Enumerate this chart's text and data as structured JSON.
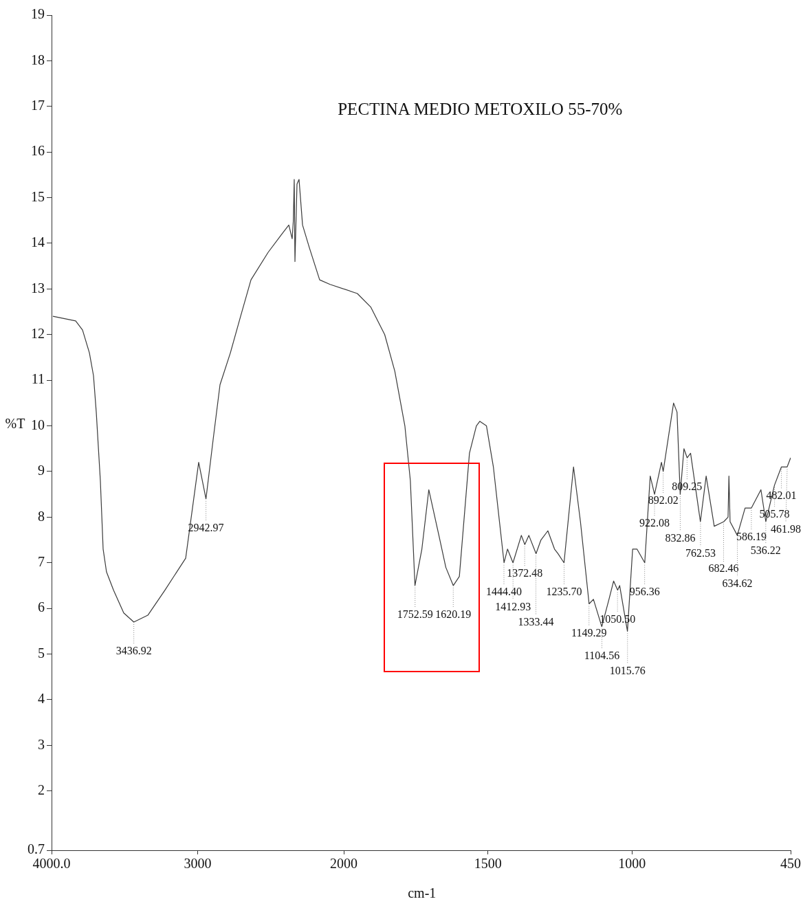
{
  "chart_data": [
    {
      "type": "line",
      "ylabel": "%T",
      "xlim": [
        4000,
        2000
      ],
      "xticks": [
        {
          "value": 4000,
          "label": "4000.0"
        },
        3000
      ],
      "ylim": [
        0.7,
        19
      ],
      "yticks": [
        0.7,
        2,
        3,
        4,
        5,
        6,
        7,
        8,
        9,
        10,
        11,
        12,
        13,
        14,
        15,
        16,
        17,
        18,
        19
      ],
      "grid": false,
      "legend": false,
      "marker": "none",
      "line_style": "solid",
      "series": [
        {
          "color": "#3a3a3a",
          "x": [
            3991,
            3835,
            3788,
            3741,
            3713,
            3694,
            3666,
            3647,
            3624,
            3576,
            3506,
            3437,
            3341,
            3224,
            3082,
            2993,
            2943,
            2894,
            2847,
            2776,
            2706,
            2635,
            2518,
            2424,
            2376,
            2353,
            2345,
            2339,
            2334,
            2320,
            2306,
            2282,
            2235,
            2165,
            2094,
            2000
          ],
          "values": [
            12.4,
            12.3,
            12.1,
            11.6,
            11.1,
            10.3,
            8.8,
            7.3,
            6.8,
            6.4,
            5.9,
            5.7,
            5.85,
            6.4,
            7.1,
            9.2,
            8.4,
            9.7,
            10.9,
            11.6,
            12.4,
            13.2,
            13.8,
            14.2,
            14.4,
            14.1,
            14.5,
            15.4,
            13.6,
            15.3,
            15.4,
            14.4,
            13.9,
            13.2,
            13.1,
            13
          ]
        }
      ],
      "annotations": [
        {
          "text": "3436.92",
          "x": 3436.92,
          "y": 5.7
        },
        {
          "text": "2942.97",
          "x": 2942.97,
          "y": 8.4
        }
      ]
    },
    {
      "type": "line",
      "title": "PECTINA MEDIO METOXILO 55-70%",
      "xlabel": "cm-1",
      "xlim": [
        2000,
        450
      ],
      "xticks": [
        2000,
        1500,
        1000,
        450
      ],
      "ylim": [
        0.7,
        19
      ],
      "yticks": [
        0.7,
        2,
        3,
        4,
        5,
        6,
        7,
        8,
        9,
        10,
        11,
        12,
        13,
        14,
        15,
        16,
        17,
        18,
        19
      ],
      "tick_labels": "x",
      "grid": false,
      "legend": false,
      "marker": "none",
      "line_style": "solid",
      "series": [
        {
          "color": "#3a3a3a",
          "x": [
            2000,
            1953,
            1906,
            1858,
            1823,
            1788,
            1769,
            1753,
            1729,
            1705,
            1670,
            1646,
            1620,
            1599,
            1564,
            1540,
            1528,
            1505,
            1481,
            1444,
            1432,
            1413,
            1384,
            1372,
            1358,
            1333,
            1316,
            1292,
            1269,
            1257,
            1236,
            1203,
            1179,
            1149,
            1134,
            1105,
            1080,
            1064,
            1050,
            1043,
            1016,
            998,
            983,
            956,
            937,
            922,
            898,
            892,
            856,
            844,
            833,
            820,
            809,
            797,
            763,
            743,
            715,
            682,
            667,
            664,
            660,
            635,
            608,
            586,
            553,
            536,
            506,
            482,
            462,
            450
          ],
          "values": [
            13,
            12.9,
            12.6,
            12,
            11.2,
            10,
            8.8,
            6.5,
            7.3,
            8.6,
            7.6,
            6.9,
            6.5,
            6.7,
            9.4,
            10,
            10.1,
            10,
            9.1,
            7,
            7.3,
            7,
            7.6,
            7.4,
            7.6,
            7.2,
            7.5,
            7.7,
            7.3,
            7.2,
            7,
            9.1,
            7.9,
            6.1,
            6.2,
            5.6,
            6.2,
            6.6,
            6.4,
            6.5,
            5.5,
            7.3,
            7.3,
            7,
            8.9,
            8.5,
            9.2,
            9,
            10.5,
            10.3,
            8.5,
            9.5,
            9.3,
            9.4,
            7.9,
            8.9,
            7.8,
            7.9,
            8,
            8.9,
            7.9,
            7.6,
            8.2,
            8.2,
            8.6,
            7.9,
            8.7,
            9.1,
            9.1,
            9.3
          ]
        }
      ],
      "annotations": [
        {
          "text": "1752.59",
          "x": 1752.59,
          "y": 6.5
        },
        {
          "text": "1620.19",
          "x": 1620.19,
          "y": 6.5
        },
        {
          "text": "1444.40",
          "x": 1444.4,
          "y": 7
        },
        {
          "text": "1412.93",
          "x": 1412.93,
          "y": 7
        },
        {
          "text": "1372.48",
          "x": 1372.48,
          "y": 7.4
        },
        {
          "text": "1333.44",
          "x": 1333.44,
          "y": 7.2
        },
        {
          "text": "1235.70",
          "x": 1235.7,
          "y": 7
        },
        {
          "text": "1149.29",
          "x": 1149.29,
          "y": 6.1
        },
        {
          "text": "1104.56",
          "x": 1104.56,
          "y": 5.6
        },
        {
          "text": "1050.50",
          "x": 1050.5,
          "y": 6.4
        },
        {
          "text": "1015.76",
          "x": 1015.76,
          "y": 5.5
        },
        {
          "text": "956.36",
          "x": 956.36,
          "y": 7
        },
        {
          "text": "922.08",
          "x": 922.08,
          "y": 8.5
        },
        {
          "text": "892.02",
          "x": 892.02,
          "y": 9
        },
        {
          "text": "832.86",
          "x": 832.86,
          "y": 8.5
        },
        {
          "text": "809.25",
          "x": 809.25,
          "y": 9.3
        },
        {
          "text": "762.53",
          "x": 762.53,
          "y": 7.9
        },
        {
          "text": "682.46",
          "x": 682.46,
          "y": 7.9
        },
        {
          "text": "634.62",
          "x": 634.62,
          "y": 7.6
        },
        {
          "text": "586.19",
          "x": 586.19,
          "y": 8.2
        },
        {
          "text": "536.22",
          "x": 536.22,
          "y": 7.9
        },
        {
          "text": "505.78",
          "x": 505.78,
          "y": 8.7
        },
        {
          "text": "482.01",
          "x": 482.01,
          "y": 9.1
        },
        {
          "text": "461.98",
          "x": 461.98,
          "y": 9.1
        }
      ]
    }
  ]
}
